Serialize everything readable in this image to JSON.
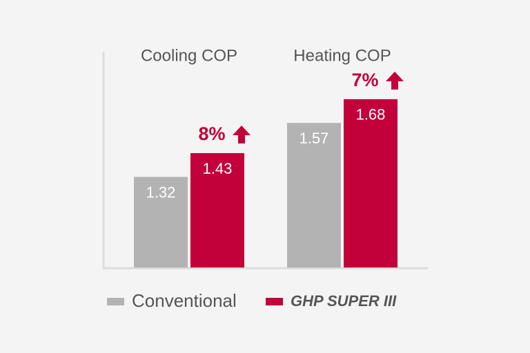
{
  "chart_data": {
    "type": "bar",
    "categories": [
      "Cooling COP",
      "Heating COP"
    ],
    "series": [
      {
        "name": "Conventional",
        "color": "#b3b3b3",
        "values": [
          1.32,
          1.57
        ]
      },
      {
        "name": "GHP SUPER III",
        "color": "#c2003a",
        "values": [
          1.43,
          1.68
        ]
      }
    ],
    "annotations": [
      "8%",
      "7%"
    ],
    "ylim": [
      0.9,
      1.9
    ]
  }
}
